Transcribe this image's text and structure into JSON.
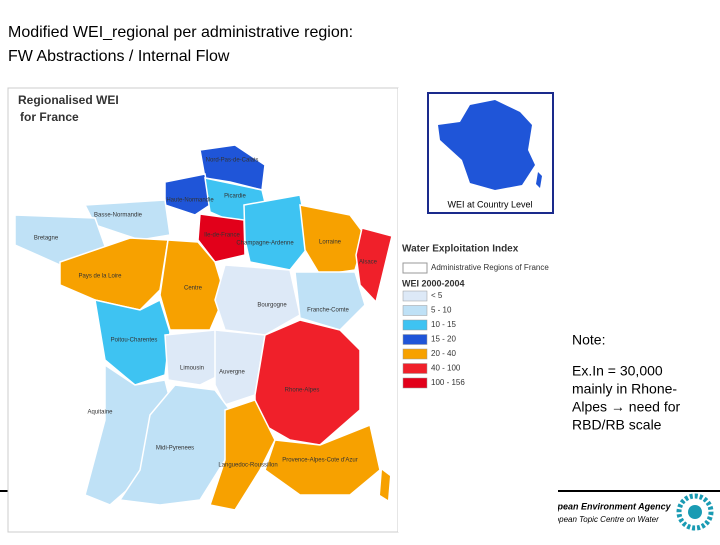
{
  "header": {
    "title": [
      "Modified WEI_regional per administrative region:",
      "FW Abstractions / Internal Flow"
    ]
  },
  "map": {
    "title": [
      "Regionalised WEI",
      "for France"
    ],
    "inset_label": "WEI at Country Level",
    "legend": {
      "title": "Water Exploitation Index",
      "admin_label": "Administrative Regions of France",
      "period": "WEI 2000-2004",
      "items": [
        {
          "label": "< 5",
          "color": "#dde9f7"
        },
        {
          "label": "5 - 10",
          "color": "#bfe1f6"
        },
        {
          "label": "10 - 15",
          "color": "#3ec3f2"
        },
        {
          "label": "15 - 20",
          "color": "#1f55d8"
        },
        {
          "label": "20 - 40",
          "color": "#f7a100"
        },
        {
          "label": "40 - 100",
          "color": "#f0202a"
        },
        {
          "label": "100 - 156",
          "color": "#e2001a"
        }
      ]
    },
    "regions": [
      {
        "label": "Nord-Pas-de-Calais",
        "color": "#1f55d8"
      },
      {
        "label": "Haute-Normandie",
        "color": "#1f55d8"
      },
      {
        "label": "Picardie",
        "color": "#3ec3f2"
      },
      {
        "label": "Basse-Normandie",
        "color": "#bfe1f6"
      },
      {
        "label": "Bretagne",
        "color": "#bfe1f6"
      },
      {
        "label": "Ile-de-France",
        "color": "#e2001a"
      },
      {
        "label": "Champagne-Ardenne",
        "color": "#3ec3f2"
      },
      {
        "label": "Lorraine",
        "color": "#f7a100"
      },
      {
        "label": "Alsace",
        "color": "#f0202a"
      },
      {
        "label": "Pays de la Loire",
        "color": "#f7a100"
      },
      {
        "label": "Centre",
        "color": "#f7a100"
      },
      {
        "label": "Bourgogne",
        "color": "#dde9f7"
      },
      {
        "label": "Franche-Comte",
        "color": "#bfe1f6"
      },
      {
        "label": "Poitou-Charentes",
        "color": "#3ec3f2"
      },
      {
        "label": "Limousin",
        "color": "#dde9f7"
      },
      {
        "label": "Auvergne",
        "color": "#dde9f7"
      },
      {
        "label": "Rhone-Alpes",
        "color": "#f0202a"
      },
      {
        "label": "Aquitaine",
        "color": "#bfe1f6"
      },
      {
        "label": "Midi-Pyrenees",
        "color": "#bfe1f6"
      },
      {
        "label": "Languedoc-Roussillon",
        "color": "#f7a100"
      },
      {
        "label": "Provence-Alpes-Cote d'Azur",
        "color": "#f7a100"
      }
    ]
  },
  "note": [
    "Note:",
    "Ex.In = 30,000",
    "mainly in Rhone-",
    "Alpes → need for",
    "RBD/RB scale"
  ],
  "footer": [
    "opean Environment Agency",
    "ropean Topic Centre on Water"
  ]
}
